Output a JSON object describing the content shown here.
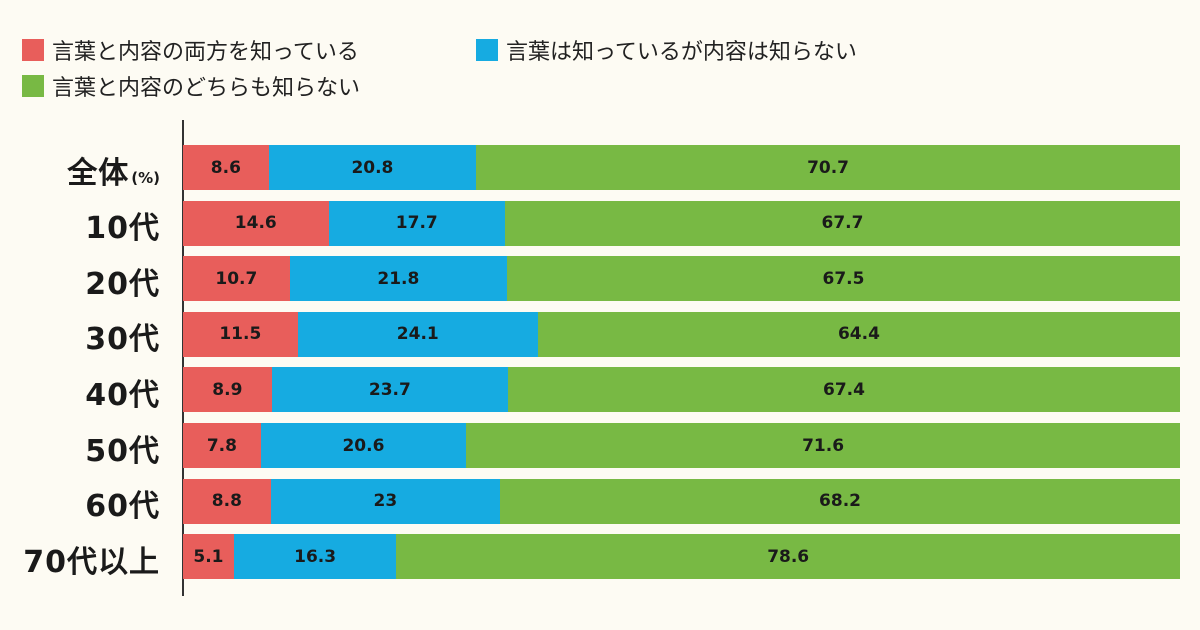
{
  "chart_data": {
    "type": "bar",
    "orientation": "horizontal",
    "stacked": true,
    "title": "",
    "xlabel": "",
    "ylabel": "",
    "unit": "(%)",
    "xlim": [
      0,
      100
    ],
    "grid": false,
    "legend_position": "top-left",
    "categories": [
      "全体",
      "10代",
      "20代",
      "30代",
      "40代",
      "50代",
      "60代",
      "70代以上"
    ],
    "series": [
      {
        "name": "言葉と内容の両方を知っている",
        "color": "#e85e5b",
        "values": [
          8.6,
          14.6,
          10.7,
          11.5,
          8.9,
          7.8,
          8.8,
          5.1
        ]
      },
      {
        "name": "言葉は知っているが内容は知らない",
        "color": "#16abe1",
        "values": [
          20.8,
          17.7,
          21.8,
          24.1,
          23.7,
          20.6,
          23,
          16.3
        ]
      },
      {
        "name": "言葉と内容のどちらも知らない",
        "color": "#78b944",
        "values": [
          70.7,
          67.7,
          67.5,
          64.4,
          67.4,
          71.6,
          68.2,
          78.6
        ]
      }
    ],
    "data_labels": [
      [
        "8.6",
        "20.8",
        "70.7"
      ],
      [
        "14.6",
        "17.7",
        "67.7"
      ],
      [
        "10.7",
        "21.8",
        "67.5"
      ],
      [
        "11.5",
        "24.1",
        "64.4"
      ],
      [
        "8.9",
        "23.7",
        "67.4"
      ],
      [
        "7.8",
        "20.6",
        "71.6"
      ],
      [
        "8.8",
        "23",
        "68.2"
      ],
      [
        "5.1",
        "16.3",
        "78.6"
      ]
    ]
  }
}
